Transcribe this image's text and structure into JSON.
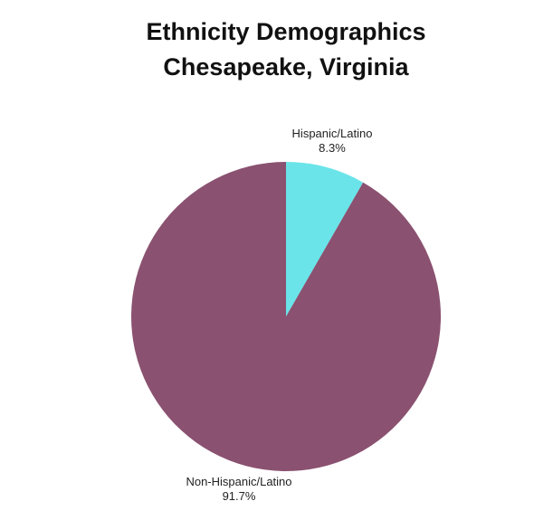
{
  "chart_data": {
    "type": "pie",
    "title": "Ethnicity Demographics",
    "subtitle": "Chesapeake, Virginia",
    "slices": [
      {
        "label": "Hispanic/Latino",
        "value": 8.3,
        "value_label": "8.3%",
        "color": "#6ae4e9"
      },
      {
        "label": "Non-Hispanic/Latino",
        "value": 91.7,
        "value_label": "91.7%",
        "color": "#8a5170"
      }
    ],
    "start": "12 o'clock",
    "direction": "clockwise",
    "legend": "none"
  }
}
